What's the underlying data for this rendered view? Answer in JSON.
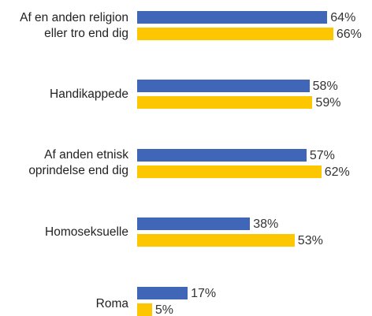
{
  "chart_data": {
    "type": "bar",
    "orientation": "horizontal",
    "categories": [
      "Af en anden religion\neller tro end dig",
      "Handikappede",
      "Af anden etnisk\noprindelse end dig",
      "Homoseksuelle",
      "Roma"
    ],
    "series": [
      {
        "color": "#3f66b7",
        "values": [
          64,
          58,
          57,
          38,
          17
        ],
        "value_labels": [
          "64%",
          "58%",
          "57%",
          "38%",
          "17%"
        ]
      },
      {
        "color": "#fcc700",
        "values": [
          66,
          59,
          62,
          53,
          5
        ],
        "value_labels": [
          "66%",
          "59%",
          "62%",
          "53%",
          "5%"
        ]
      }
    ]
  }
}
